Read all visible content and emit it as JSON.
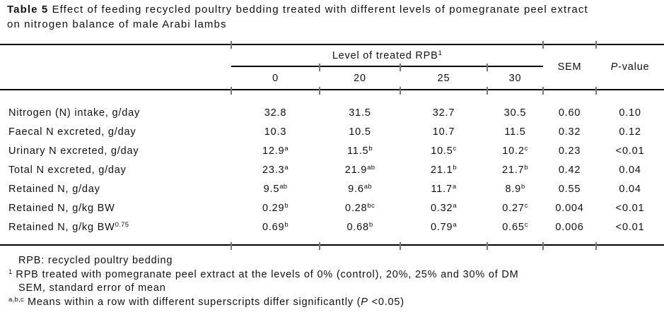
{
  "caption": {
    "table_number": "Table 5",
    "line1": "Effect of feeding recycled poultry bedding treated with different levels of pomegranate peel extract",
    "line2": "on nitrogen balance of male Arabi lambs"
  },
  "table": {
    "span_header": "Level of treated RPB^{1}",
    "level_columns": [
      "0",
      "20",
      "25",
      "30"
    ],
    "sem_header": "SEM",
    "pvalue_header": "_P_-value",
    "rows": [
      {
        "label": "Nitrogen (N) intake, g/day",
        "values": [
          "32.8",
          "31.5",
          "32.7",
          "30.5",
          "0.60",
          "0.10"
        ]
      },
      {
        "label": "Faecal N excreted, g/day",
        "values": [
          "10.3",
          "10.5",
          "10.7",
          "11.5",
          "0.32",
          "0.12"
        ]
      },
      {
        "label": "Urinary N excreted, g/day",
        "values": [
          "12.9^{a}",
          "11.5^{b}",
          "10.5^{c}",
          "10.2^{c}",
          "0.23",
          "<0.01"
        ]
      },
      {
        "label": "Total N excreted, g/day",
        "values": [
          "23.3^{a}",
          "21.9^{ab}",
          "21.1^{b}",
          "21.7^{b}",
          "0.42",
          "0.04"
        ]
      },
      {
        "label": "Retained N, g/day",
        "values": [
          "9.5^{ab}",
          "9.6^{ab}",
          "11.7^{a}",
          "8.9^{b}",
          "0.55",
          "0.04"
        ]
      },
      {
        "label": "Retained N, g/kg BW",
        "values": [
          "0.29^{b}",
          "0.28^{bc}",
          "0.32^{a}",
          "0.27^{c}",
          "0.004",
          "<0.01"
        ]
      },
      {
        "label": "Retained N, g/kg BW^{0.75}",
        "values": [
          "0.69^{b}",
          "0.68^{b}",
          "0.79^{a}",
          "0.65^{c}",
          "0.006",
          "<0.01"
        ]
      }
    ]
  },
  "footnotes": [
    {
      "text": "RPB: recycled poultry bedding",
      "indent": true
    },
    {
      "text": "^{1} RPB treated with pomegranate peel extract at the levels of 0% (control), 20%, 25% and 30% of DM",
      "indent": false
    },
    {
      "text": "SEM, standard error of mean",
      "indent": true
    },
    {
      "text": "^{a,b,c} Means within a row with different superscripts differ significantly (_P_ <0.05)",
      "indent": false
    }
  ]
}
